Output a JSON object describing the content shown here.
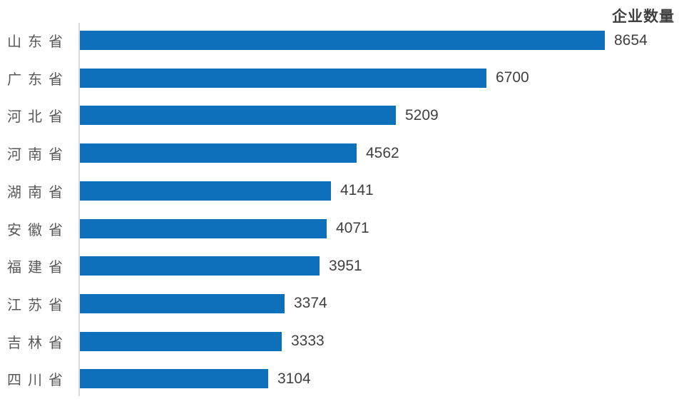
{
  "chart_data": {
    "type": "bar",
    "orientation": "horizontal",
    "title": "企业数量",
    "categories": [
      "山东省",
      "广东省",
      "河北省",
      "河南省",
      "湖南省",
      "安徽省",
      "福建省",
      "江苏省",
      "吉林省",
      "四川省"
    ],
    "values": [
      8654,
      6700,
      5209,
      4562,
      4141,
      4071,
      3951,
      3374,
      3333,
      3104
    ],
    "series": [
      {
        "name": "企业数量",
        "values": [
          8654,
          6700,
          5209,
          4562,
          4141,
          4071,
          3951,
          3374,
          3333,
          3104
        ]
      }
    ],
    "xlabel": "",
    "ylabel": "",
    "xlim": [
      0,
      8654
    ],
    "grid": false,
    "legend_position": "none",
    "data_labels_shown": true,
    "bar_color": "#0e70ba",
    "axis_line_color": "#d9d9d9",
    "category_label_color": "#595959",
    "value_label_color": "#404040",
    "title_color": "#404040",
    "background_color": "#ffffff"
  }
}
